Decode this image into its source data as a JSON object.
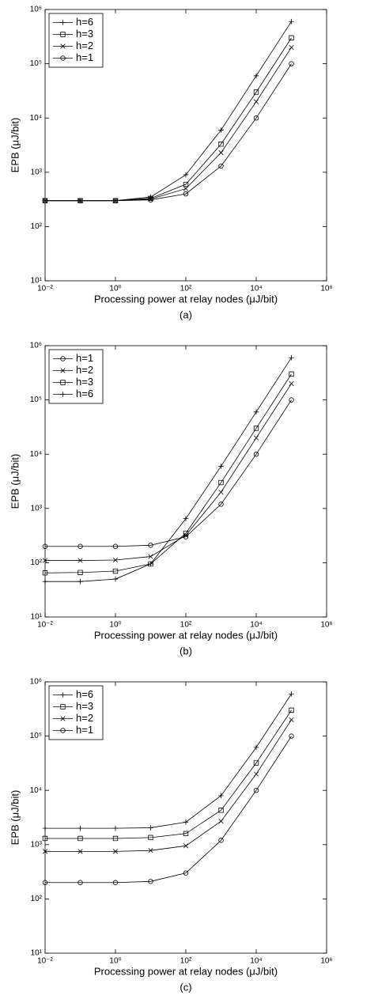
{
  "chart_data": [
    {
      "type": "line",
      "caption": "(a)",
      "x_label": "Processing power at relay nodes (μJ/bit)",
      "y_label": "EPB (μJ/bit)",
      "x": [
        0.01,
        0.1,
        1,
        10,
        100,
        1000,
        10000,
        100000
      ],
      "series": [
        {
          "name": "h=6",
          "color": "#000000",
          "marker": "plus",
          "values": [
            300,
            300,
            300,
            350,
            900,
            6000,
            60000,
            600000
          ]
        },
        {
          "name": "h=3",
          "color": "#000000",
          "marker": "square",
          "values": [
            300,
            300,
            300,
            330,
            600,
            3300,
            30000,
            300000
          ]
        },
        {
          "name": "h=2",
          "color": "#000000",
          "marker": "x",
          "values": [
            300,
            300,
            300,
            320,
            500,
            2300,
            20000,
            200000
          ]
        },
        {
          "name": "h=1",
          "color": "#000000",
          "marker": "circle",
          "values": [
            300,
            300,
            300,
            310,
            400,
            1300,
            10000,
            100000
          ]
        }
      ],
      "log_x": true,
      "log_y": true,
      "legend": "upper left",
      "xlim": [
        0.01,
        1000000
      ],
      "ylim": [
        10,
        1000000
      ],
      "xticks": [
        {
          "value": 0.01,
          "label": "10⁻²"
        },
        {
          "value": 1,
          "label": "10⁰"
        },
        {
          "value": 100,
          "label": "10²"
        },
        {
          "value": 10000,
          "label": "10⁴"
        },
        {
          "value": 1000000,
          "label": "10⁶"
        }
      ],
      "yticks": [
        {
          "value": 10,
          "label": "10¹"
        },
        {
          "value": 100,
          "label": "10²"
        },
        {
          "value": 1000,
          "label": "10³"
        },
        {
          "value": 10000,
          "label": "10⁴"
        },
        {
          "value": 100000,
          "label": "10⁵"
        },
        {
          "value": 1000000,
          "label": "10⁶"
        }
      ]
    },
    {
      "type": "line",
      "caption": "(b)",
      "x_label": "Processing power at relay nodes (μJ/bit)",
      "y_label": "EPB (μJ/bit)",
      "x": [
        0.01,
        0.1,
        1,
        10,
        100,
        1000,
        10000,
        100000
      ],
      "series": [
        {
          "name": "h=1",
          "color": "#000000",
          "marker": "circle",
          "values": [
            200,
            200,
            200,
            210,
            300,
            1200,
            10000,
            100000
          ]
        },
        {
          "name": "h=2",
          "color": "#000000",
          "marker": "x",
          "values": [
            110,
            110,
            112,
            130,
            320,
            2000,
            20000,
            200000
          ]
        },
        {
          "name": "h=3",
          "color": "#000000",
          "marker": "square",
          "values": [
            65,
            66,
            70,
            95,
            350,
            3000,
            30000,
            300000
          ]
        },
        {
          "name": "h=6",
          "color": "#000000",
          "marker": "plus",
          "values": [
            45,
            45,
            50,
            95,
            650,
            6000,
            60000,
            600000
          ]
        }
      ],
      "log_x": true,
      "log_y": true,
      "legend": "upper left",
      "xlim": [
        0.01,
        1000000
      ],
      "ylim": [
        10,
        1000000
      ],
      "xticks": [
        {
          "value": 0.01,
          "label": "10⁻²"
        },
        {
          "value": 1,
          "label": "10⁰"
        },
        {
          "value": 100,
          "label": "10²"
        },
        {
          "value": 10000,
          "label": "10⁴"
        },
        {
          "value": 1000000,
          "label": "10⁶"
        }
      ],
      "yticks": [
        {
          "value": 10,
          "label": "10¹"
        },
        {
          "value": 100,
          "label": "10²"
        },
        {
          "value": 1000,
          "label": "10³"
        },
        {
          "value": 10000,
          "label": "10⁴"
        },
        {
          "value": 100000,
          "label": "10⁵"
        },
        {
          "value": 1000000,
          "label": "10⁶"
        }
      ]
    },
    {
      "type": "line",
      "caption": "(c)",
      "x_label": "Processing power at relay nodes (μJ/bit)",
      "y_label": "EPB (μJ/bit)",
      "x": [
        0.01,
        0.1,
        1,
        10,
        100,
        1000,
        10000,
        100000
      ],
      "series": [
        {
          "name": "h=6",
          "color": "#000000",
          "marker": "plus",
          "values": [
            2000,
            2000,
            2000,
            2050,
            2600,
            8000,
            62000,
            600000
          ]
        },
        {
          "name": "h=3",
          "color": "#000000",
          "marker": "square",
          "values": [
            1300,
            1300,
            1300,
            1350,
            1600,
            4300,
            32000,
            300000
          ]
        },
        {
          "name": "h=2",
          "color": "#000000",
          "marker": "x",
          "values": [
            750,
            750,
            750,
            780,
            950,
            2700,
            20000,
            200000
          ]
        },
        {
          "name": "h=1",
          "color": "#000000",
          "marker": "circle",
          "values": [
            200,
            200,
            200,
            210,
            300,
            1200,
            10000,
            100000
          ]
        }
      ],
      "log_x": true,
      "log_y": true,
      "legend": "upper left",
      "xlim": [
        0.01,
        1000000
      ],
      "ylim": [
        10,
        1000000
      ],
      "xticks": [
        {
          "value": 0.01,
          "label": "10⁻²"
        },
        {
          "value": 1,
          "label": "10⁰"
        },
        {
          "value": 100,
          "label": "10²"
        },
        {
          "value": 10000,
          "label": "10⁴"
        },
        {
          "value": 1000000,
          "label": "10⁶"
        }
      ],
      "yticks": [
        {
          "value": 10,
          "label": "10¹"
        },
        {
          "value": 100,
          "label": "10²"
        },
        {
          "value": 1000,
          "label": "10³"
        },
        {
          "value": 10000,
          "label": "10⁴"
        },
        {
          "value": 100000,
          "label": "10⁵"
        },
        {
          "value": 1000000,
          "label": "10⁶"
        }
      ]
    }
  ]
}
